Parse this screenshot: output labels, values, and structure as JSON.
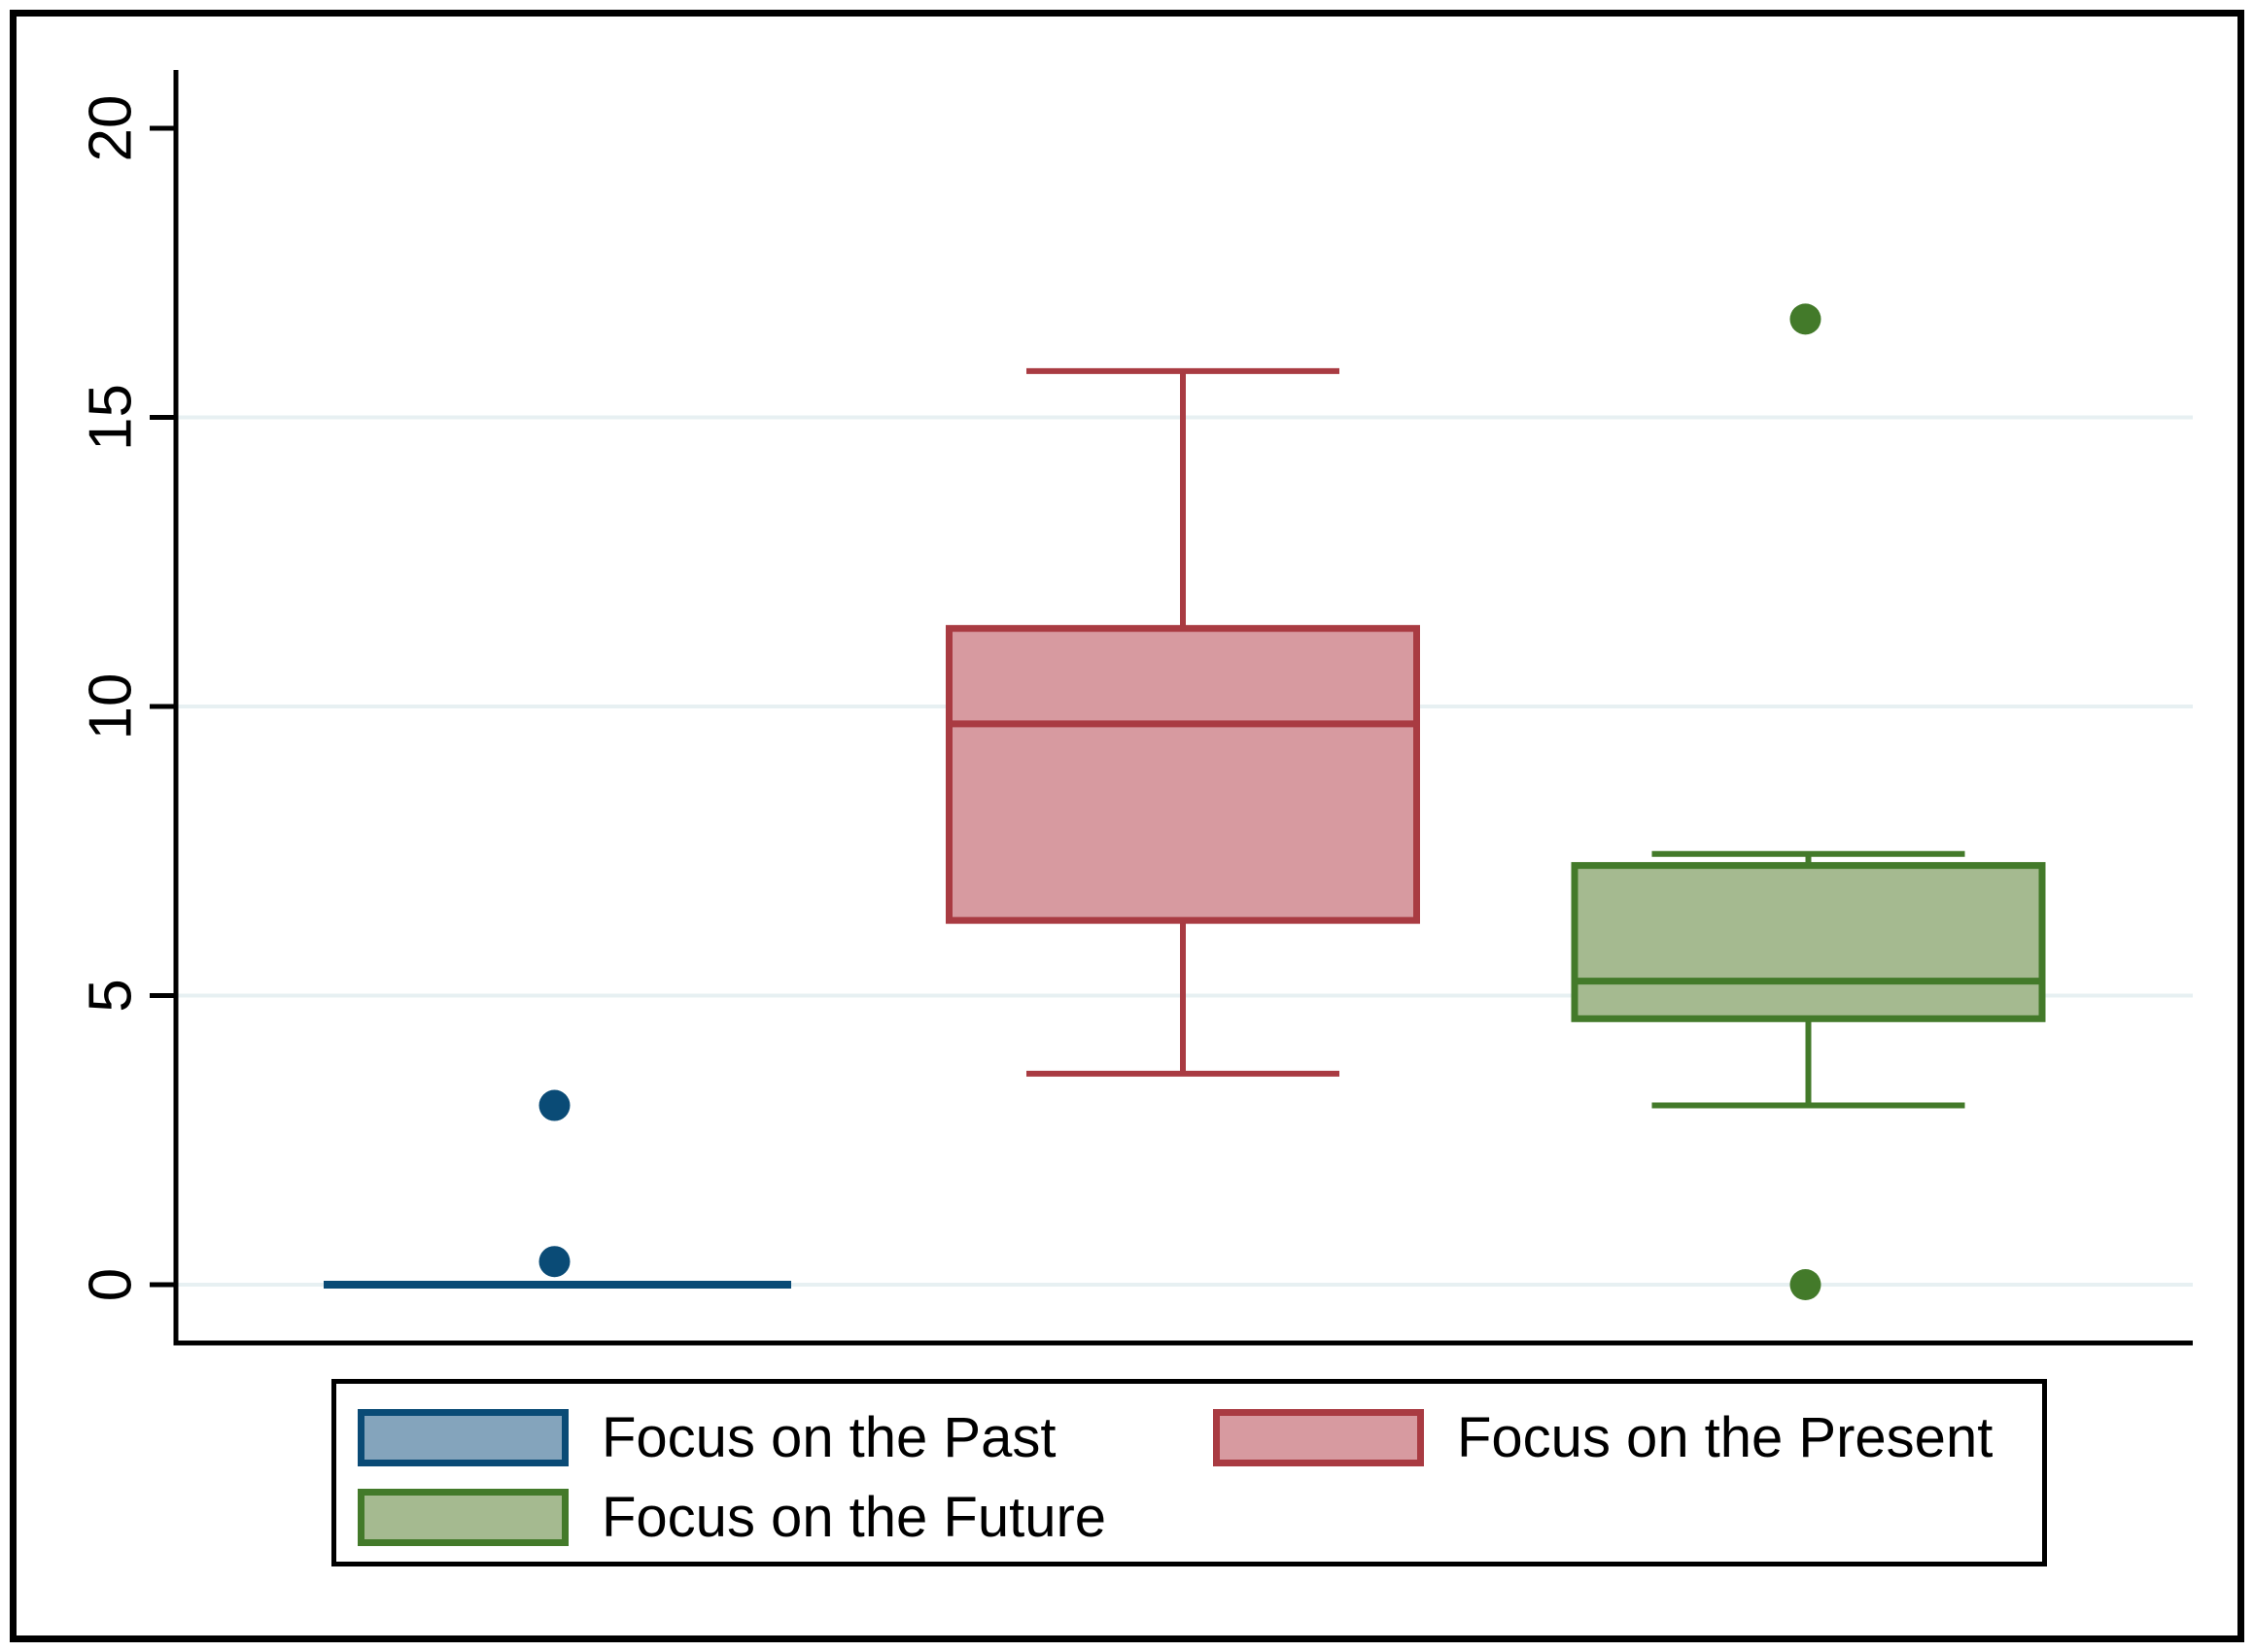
{
  "figure": {
    "background": "#ffffff",
    "border_color": "#000000",
    "gridline_color": "#e7f0f2",
    "axis_color": "#000000"
  },
  "y_axis": {
    "tick_labels": [
      "0",
      "5",
      "10",
      "15",
      "20"
    ],
    "tick_values": [
      0,
      5,
      10,
      15,
      20
    ],
    "gridline_values": [
      0,
      5,
      10,
      15
    ]
  },
  "chart_data": {
    "type": "box",
    "orientation": "vertical",
    "title": "",
    "xlabel": "",
    "ylabel": "",
    "ylim": [
      0,
      21
    ],
    "yticks": [
      0,
      5,
      10,
      15,
      20
    ],
    "grid": true,
    "legend_position": "bottom",
    "categories": [
      "Focus on the Past",
      "Focus on the Present",
      "Focus on the Future"
    ],
    "series": [
      {
        "name": "Focus on the Past",
        "fill": "#84a4bc",
        "stroke": "#0a4b76",
        "whisker_low": 0,
        "q1": 0,
        "median": 0,
        "q3": 0,
        "whisker_high": 0,
        "outliers": [
          0.4,
          3.1
        ]
      },
      {
        "name": "Focus on the Present",
        "fill": "#d79aa0",
        "stroke": "#a93b42",
        "whisker_low": 3.65,
        "q1": 6.3,
        "median": 9.7,
        "q3": 11.35,
        "whisker_high": 15.8,
        "outliers": []
      },
      {
        "name": "Focus on the Future",
        "fill": "#a5ba90",
        "stroke": "#437a2a",
        "whisker_low": 3.1,
        "q1": 4.6,
        "median": 5.25,
        "q3": 7.25,
        "whisker_high": 7.45,
        "outliers": [
          16.7,
          0
        ]
      }
    ]
  },
  "legend": {
    "items": [
      {
        "label": "Focus on the Past"
      },
      {
        "label": "Focus on the Present"
      },
      {
        "label": "Focus on the Future"
      }
    ]
  }
}
